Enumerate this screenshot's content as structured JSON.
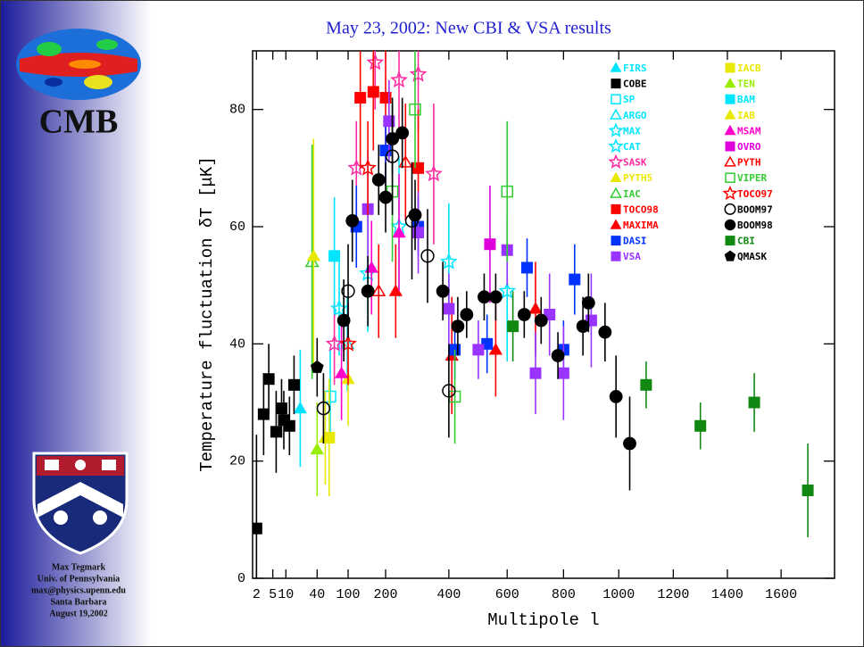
{
  "title": "May 23, 2002: New CBI & VSA results",
  "sidebar": {
    "logo_text": "CMB",
    "credits": [
      "Max Tegmark",
      "Univ. of Pennsylvania",
      "max@physics.upenn.edu",
      "Santa Barbara",
      "August 19,2002"
    ]
  },
  "chart_data": {
    "type": "errorbar-scatter",
    "xlabel": "Multipole l",
    "ylabel": "Temperature fluctuation δT  [μK]",
    "xscale": "mixed",
    "xlim": [
      1.6,
      1800
    ],
    "ylim": [
      0,
      90
    ],
    "xticks": [
      2,
      5,
      10,
      40,
      100,
      200,
      400,
      600,
      800,
      1000,
      1200,
      1400,
      1600
    ],
    "yticks": [
      0,
      20,
      40,
      60,
      80
    ],
    "legend": "upper right",
    "series": [
      {
        "name": "FIRS",
        "color": "#00e5ff",
        "marker": "triangle",
        "x": [
          20
        ],
        "values": [
          29
        ],
        "errors": [
          10
        ]
      },
      {
        "name": "COBE",
        "color": "#000000",
        "marker": "square",
        "x": [
          2,
          3,
          4,
          6,
          8,
          9,
          12,
          15
        ],
        "values": [
          8.5,
          28,
          34,
          25,
          29,
          27,
          26,
          33
        ],
        "errors": [
          16,
          7,
          6,
          7,
          5,
          5,
          5,
          5
        ]
      },
      {
        "name": "SP",
        "color": "#00e5ff",
        "marker": "open-square",
        "x": [
          62
        ],
        "values": [
          31
        ],
        "errors": [
          8
        ]
      },
      {
        "name": "ARGO",
        "color": "#00e5ff",
        "marker": "open-triangle",
        "x": [
          98
        ],
        "values": [
          40
        ],
        "errors": [
          8
        ]
      },
      {
        "name": "MAX",
        "color": "#00e5ff",
        "marker": "open-star",
        "x": [
          80,
          150,
          240
        ],
        "values": [
          46,
          52,
          60
        ],
        "errors": [
          8,
          10,
          12
        ]
      },
      {
        "name": "CAT",
        "color": "#00e5ff",
        "marker": "open-star",
        "x": [
          400,
          600
        ],
        "values": [
          54,
          49
        ],
        "errors": [
          10,
          12
        ]
      },
      {
        "name": "SASK",
        "color": "#ff2aa0",
        "marker": "open-star",
        "x": [
          70,
          120,
          170,
          240,
          300,
          350
        ],
        "values": [
          40,
          70,
          88,
          85,
          86,
          69
        ],
        "errors": [
          7,
          8,
          8,
          9,
          10,
          12
        ]
      },
      {
        "name": "PYTH5",
        "color": "#e8e800",
        "marker": "triangle",
        "x": [
          53,
          100
        ],
        "values": [
          24,
          34
        ],
        "errors": [
          8,
          8
        ]
      },
      {
        "name": "IAC",
        "color": "#33cc33",
        "marker": "open-triangle",
        "x": [
          33
        ],
        "values": [
          54
        ],
        "errors": [
          20
        ]
      },
      {
        "name": "TOCO98",
        "color": "#ff0000",
        "marker": "square",
        "x": [
          130,
          165,
          200,
          300
        ],
        "values": [
          82,
          83,
          82,
          70
        ],
        "errors": [
          12,
          10,
          11,
          10
        ]
      },
      {
        "name": "MAXIMA",
        "color": "#ff0000",
        "marker": "triangle",
        "x": [
          230,
          410,
          560,
          700
        ],
        "values": [
          49,
          38,
          39,
          46
        ],
        "errors": [
          8,
          10,
          8,
          8
        ]
      },
      {
        "name": "DASI",
        "color": "#0033ff",
        "marker": "square",
        "x": [
          120,
          200,
          300,
          420,
          530,
          670,
          800,
          840
        ],
        "values": [
          60,
          73,
          60,
          39,
          40,
          53,
          39,
          51
        ],
        "errors": [
          7,
          6,
          5,
          5,
          5,
          5,
          5,
          6
        ]
      },
      {
        "name": "VSA",
        "color": "#9933ff",
        "marker": "square",
        "x": [
          150,
          210,
          300,
          400,
          500,
          600,
          700,
          750,
          800,
          900
        ],
        "values": [
          63,
          78,
          59,
          46,
          39,
          56,
          35,
          45,
          35,
          44
        ],
        "errors": [
          10,
          7,
          7,
          6,
          5,
          6,
          7,
          7,
          8,
          8
        ]
      },
      {
        "name": "IACB",
        "color": "#e8e800",
        "marker": "square",
        "x": [
          60
        ],
        "values": [
          24
        ],
        "errors": [
          10
        ]
      },
      {
        "name": "TEN",
        "color": "#99ee00",
        "marker": "triangle",
        "x": [
          40
        ],
        "values": [
          22
        ],
        "errors": [
          8
        ]
      },
      {
        "name": "BAM",
        "color": "#00e5ff",
        "marker": "square",
        "x": [
          70
        ],
        "values": [
          55
        ],
        "errors": [
          10
        ]
      },
      {
        "name": "IAB",
        "color": "#e8e800",
        "marker": "triangle",
        "x": [
          35
        ],
        "values": [
          55
        ],
        "errors": [
          20
        ]
      },
      {
        "name": "MSAM",
        "color": "#ff00cc",
        "marker": "triangle",
        "x": [
          85,
          160,
          240
        ],
        "values": [
          35,
          53,
          59
        ],
        "errors": [
          8,
          8,
          10
        ]
      },
      {
        "name": "OVRO",
        "color": "#dd00dd",
        "marker": "square",
        "x": [
          540
        ],
        "values": [
          57
        ],
        "errors": [
          10
        ]
      },
      {
        "name": "PYTH",
        "color": "#ff0000",
        "marker": "open-triangle",
        "x": [
          180,
          260
        ],
        "values": [
          49,
          71
        ],
        "errors": [
          8,
          10
        ]
      },
      {
        "name": "VIPER",
        "color": "#33cc33",
        "marker": "open-square",
        "x": [
          220,
          290,
          600,
          420
        ],
        "values": [
          66,
          80,
          66,
          31
        ],
        "errors": [
          12,
          10,
          12,
          8
        ]
      },
      {
        "name": "TOCO97",
        "color": "#ff0000",
        "marker": "open-star",
        "x": [
          100,
          150
        ],
        "values": [
          40,
          70
        ],
        "errors": [
          7,
          8
        ]
      },
      {
        "name": "BOOM97",
        "color": "#000000",
        "marker": "open-circle",
        "x": [
          50,
          100,
          280,
          330,
          400,
          220
        ],
        "values": [
          29,
          49,
          61,
          55,
          32,
          72
        ],
        "errors": [
          6,
          8,
          10,
          8,
          8,
          10
        ]
      },
      {
        "name": "BOOM98",
        "color": "#000000",
        "marker": "circle",
        "x": [
          90,
          110,
          150,
          180,
          200,
          220,
          250,
          290,
          380,
          430,
          460,
          520,
          560,
          660,
          720,
          780,
          870,
          890,
          950,
          990,
          1040
        ],
        "values": [
          44,
          61,
          49,
          68,
          65,
          75,
          76,
          62,
          49,
          43,
          45,
          48,
          48,
          45,
          44,
          38,
          43,
          47,
          42,
          31,
          23
        ],
        "errors": [
          7,
          7,
          6,
          6,
          6,
          6,
          6,
          6,
          5,
          5,
          4,
          4,
          4,
          4,
          4,
          4,
          5,
          5,
          5,
          7,
          8
        ]
      },
      {
        "name": "CBI",
        "color": "#118811",
        "marker": "square",
        "x": [
          620,
          1100,
          1300,
          1500,
          1700
        ],
        "values": [
          43,
          33,
          26,
          30,
          15
        ],
        "errors": [
          6,
          4,
          4,
          5,
          8
        ]
      },
      {
        "name": "QMASK",
        "color": "#000000",
        "marker": "pentagon",
        "x": [
          40
        ],
        "values": [
          36
        ],
        "errors": [
          5
        ]
      }
    ]
  }
}
